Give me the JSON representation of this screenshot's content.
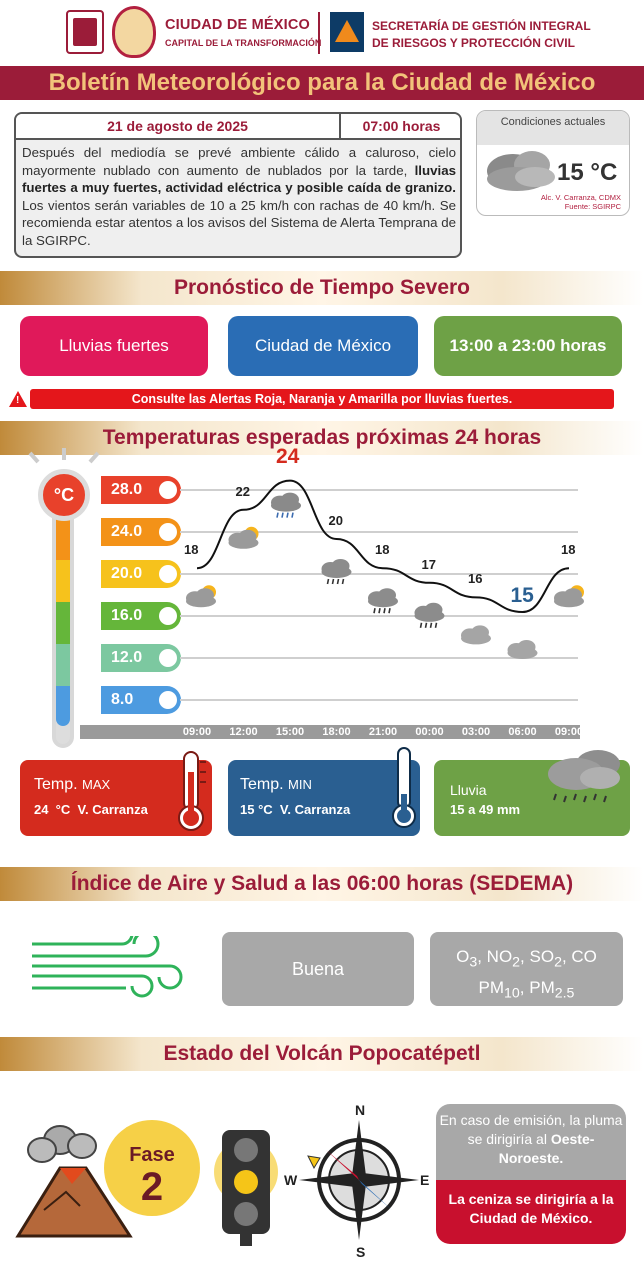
{
  "header": {
    "org1_name": "CIUDAD DE MÉXICO",
    "org1_sub": "CAPITAL DE LA TRANSFORMACIÓN",
    "org2_line1": "SECRETARÍA DE GESTIÓN INTEGRAL",
    "org2_line2": "DE RIESGOS Y PROTECCIÓN CIVIL"
  },
  "title": "Boletín Meteorológico para la Ciudad de México",
  "bulletin": {
    "date": "21 de agosto de 2025",
    "time": "07:00 horas",
    "text_a": "Después del mediodía se prevé ambiente cálido a caluroso, cielo mayormente nublado con aumento de nublados por la tarde, ",
    "text_bold": "lluvias fuertes a muy fuertes, actividad eléctrica y posible caída de granizo.",
    "text_b": " Los vientos serán variables de 10 a 25 km/h con rachas de 40 km/h. Se recomienda estar atentos a los avisos del Sistema de Alerta Temprana de la SGIRPC."
  },
  "conditions": {
    "label": "Condiciones actuales",
    "temp": "15 °C",
    "place": "Alc. V. Carranza, CDMX",
    "source": "Fuente: SGIRPC"
  },
  "severe": {
    "title": "Pronóstico de Tiempo Severo",
    "phenomenon": "Lluvias fuertes",
    "region": "Ciudad de México",
    "hours": "13:00 a 23:00 horas",
    "alert": "Consulte las Alertas Roja, Naranja y Amarilla por lluvias fuertes.",
    "colors": {
      "phenomenon": "#e0195a",
      "region": "#2a6db5",
      "hours": "#6ea146"
    }
  },
  "temps": {
    "title": "Temperaturas esperadas próximas 24 horas",
    "unit": "°C",
    "scale": [
      "28.0",
      "24.0",
      "20.0",
      "16.0",
      "12.0",
      "8.0"
    ],
    "scale_colors": [
      "#e8412b",
      "#f39218",
      "#f6c21c",
      "#65b63a",
      "#7cc8a0",
      "#4d9be0"
    ]
  },
  "chart_data": {
    "type": "line",
    "x": [
      "09:00",
      "12:00",
      "15:00",
      "18:00",
      "21:00",
      "00:00",
      "03:00",
      "06:00",
      "09:00"
    ],
    "values": [
      18,
      22,
      24,
      20,
      18,
      17,
      16,
      15,
      18
    ],
    "point_labels": [
      "18",
      "22",
      "24",
      "20",
      "18",
      "17",
      "16",
      "15",
      "18"
    ],
    "ylim": [
      8,
      28
    ],
    "icons": [
      "partly-cloudy-icon",
      "partly-cloudy-icon",
      "storm-cloud-icon",
      "rain-cloud-icon",
      "rain-cloud-icon",
      "rain-cloud-icon",
      "cloud-icon",
      "cloud-icon",
      "partly-cloudy-icon"
    ]
  },
  "summary": {
    "max_label": "Temp.",
    "max_tag": "MAX",
    "max_value": "24  °C  V. Carranza",
    "min_label": "Temp.",
    "min_tag": "MIN",
    "min_value": "15 °C  V. Carranza",
    "rain_label": "Lluvia",
    "rain_value": "15 a 49 mm"
  },
  "air": {
    "title": "Índice de Aire y Salud a las 06:00 horas (SEDEMA)",
    "quality": "Buena",
    "pollutants": {
      "o3": "O",
      "o3_sub": "3",
      "no2": "NO",
      "no2_sub": "2",
      "so2": "SO",
      "so2_sub": "2",
      "co": "CO",
      "pm10": "PM",
      "pm10_sub": "10",
      "pm25": "PM",
      "pm25_sub": "2.5"
    }
  },
  "volcano": {
    "title": "Estado del Volcán Popocatépetl",
    "phase_word": "Fase",
    "phase_num": "2",
    "compass": {
      "n": "N",
      "s": "S",
      "e": "E",
      "w": "W"
    },
    "emission_a": "En caso de emisión, la pluma se dirigiría al ",
    "emission_dir": "Oeste-Noroeste.",
    "ash": "La ceniza se dirigiría a la Ciudad de México."
  }
}
